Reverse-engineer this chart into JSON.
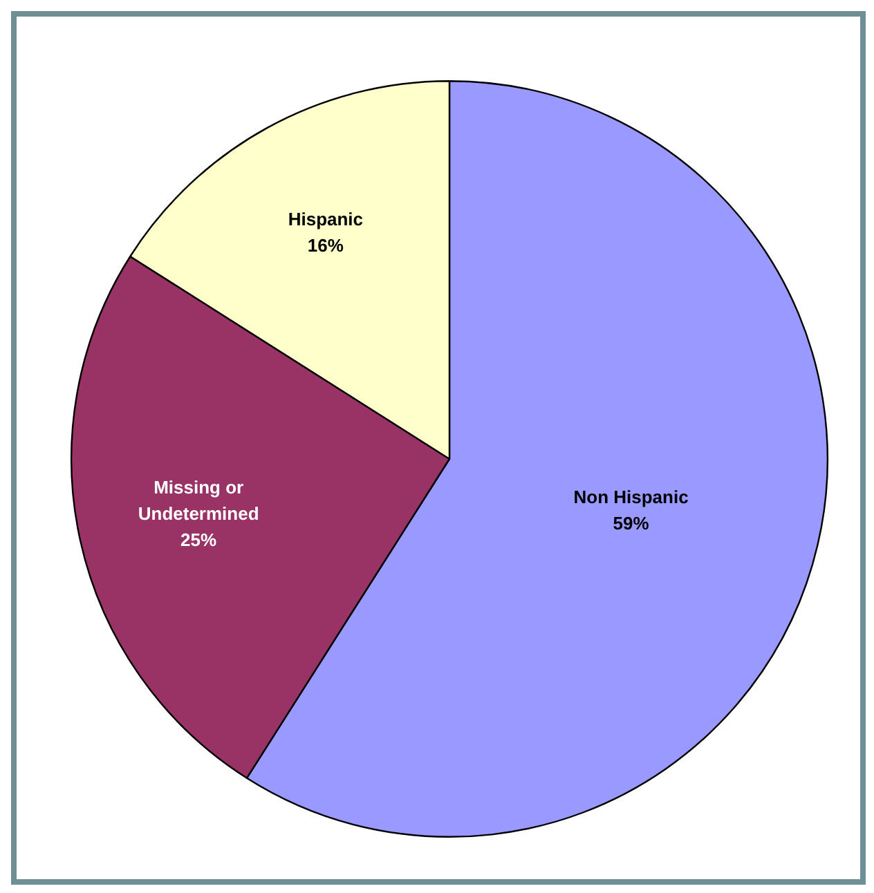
{
  "chart_data": {
    "type": "pie",
    "categories": [
      "Non Hispanic",
      "Missing or Undetermined",
      "Hispanic"
    ],
    "values": [
      59,
      25,
      16
    ],
    "colors": [
      "#9999ff",
      "#993366",
      "#ffffcc"
    ],
    "value_labels": [
      "59%",
      "25%",
      "16%"
    ],
    "legend": false
  }
}
